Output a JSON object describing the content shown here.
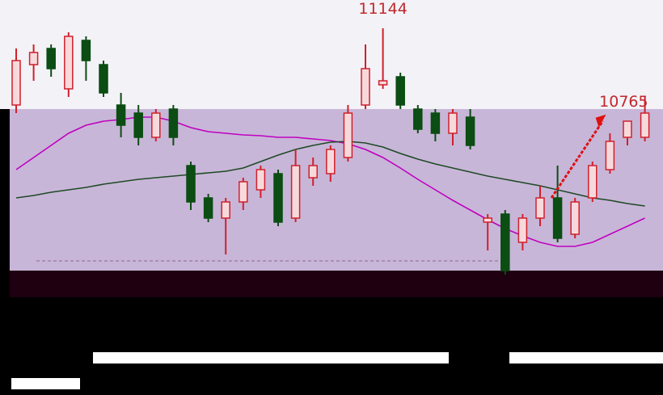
{
  "chart_data": {
    "type": "candlestick",
    "categories": [
      null,
      null,
      null,
      null,
      null,
      null,
      null,
      null,
      null,
      null,
      null,
      null,
      null,
      null,
      null,
      null,
      null,
      null,
      null,
      null,
      null,
      null,
      null,
      null,
      null,
      null,
      null,
      null,
      null,
      null,
      null,
      null,
      null,
      null,
      null,
      null,
      null
    ],
    "open": [
      10764,
      10964,
      11044,
      10844,
      11084,
      10964,
      10764,
      10724,
      10604,
      10744,
      10464,
      10304,
      10204,
      10284,
      10344,
      10424,
      10204,
      10404,
      10424,
      10504,
      10764,
      10864,
      10904,
      10744,
      10724,
      10624,
      10704,
      10184,
      10224,
      10084,
      10204,
      10304,
      10124,
      10304,
      10444,
      10604,
      10604
    ],
    "high": [
      11044,
      11064,
      11064,
      11124,
      11104,
      10984,
      10824,
      10764,
      10744,
      10764,
      10484,
      10324,
      10304,
      10404,
      10464,
      10444,
      10544,
      10504,
      10564,
      10764,
      11064,
      11144,
      10924,
      10764,
      10744,
      10744,
      10744,
      10224,
      10244,
      10224,
      10364,
      10464,
      10304,
      10484,
      10624,
      10684,
      10804
    ],
    "low": [
      10724,
      10884,
      10904,
      10804,
      10884,
      10804,
      10604,
      10564,
      10584,
      10564,
      10244,
      10184,
      10024,
      10244,
      10304,
      10164,
      10184,
      10364,
      10384,
      10484,
      10744,
      10844,
      10744,
      10624,
      10584,
      10564,
      10544,
      10044,
      9924,
      10044,
      10164,
      10084,
      10104,
      10284,
      10424,
      10564,
      10584
    ],
    "close": [
      10984,
      11024,
      10944,
      11104,
      10984,
      10824,
      10664,
      10604,
      10724,
      10604,
      10284,
      10204,
      10284,
      10384,
      10444,
      10184,
      10464,
      10464,
      10544,
      10724,
      10944,
      10884,
      10764,
      10644,
      10624,
      10724,
      10564,
      10204,
      9944,
      10204,
      10304,
      10104,
      10284,
      10464,
      10584,
      10684,
      10724
    ],
    "up_color": "#d0202a",
    "down_color": "#0b4d12",
    "series": [
      {
        "color": "#c000c0",
        "values": [
          10444,
          10504,
          10564,
          10624,
          10664,
          10684,
          10692,
          10704,
          10704,
          10684,
          10652,
          10632,
          10624,
          10616,
          10612,
          10604,
          10604,
          10596,
          10588,
          10572,
          10544,
          10504,
          10452,
          10396,
          10344,
          10292,
          10244,
          10196,
          10152,
          10116,
          10084,
          10064,
          10064,
          10084,
          10124,
          10164,
          10204
        ]
      },
      {
        "color": "#1f4a26",
        "values": [
          10304,
          10316,
          10332,
          10344,
          10356,
          10372,
          10384,
          10396,
          10404,
          10412,
          10420,
          10428,
          10436,
          10452,
          10484,
          10516,
          10544,
          10564,
          10580,
          10584,
          10576,
          10556,
          10524,
          10496,
          10472,
          10452,
          10432,
          10412,
          10396,
          10380,
          10364,
          10344,
          10324,
          10304,
          10292,
          10276,
          10264
        ]
      }
    ],
    "ylim": [
      9924,
      11284
    ],
    "annotations": [
      {
        "text": "11144",
        "value": 11144,
        "index": 21
      },
      {
        "text": "10765",
        "value": 10765,
        "index": 36
      }
    ]
  }
}
